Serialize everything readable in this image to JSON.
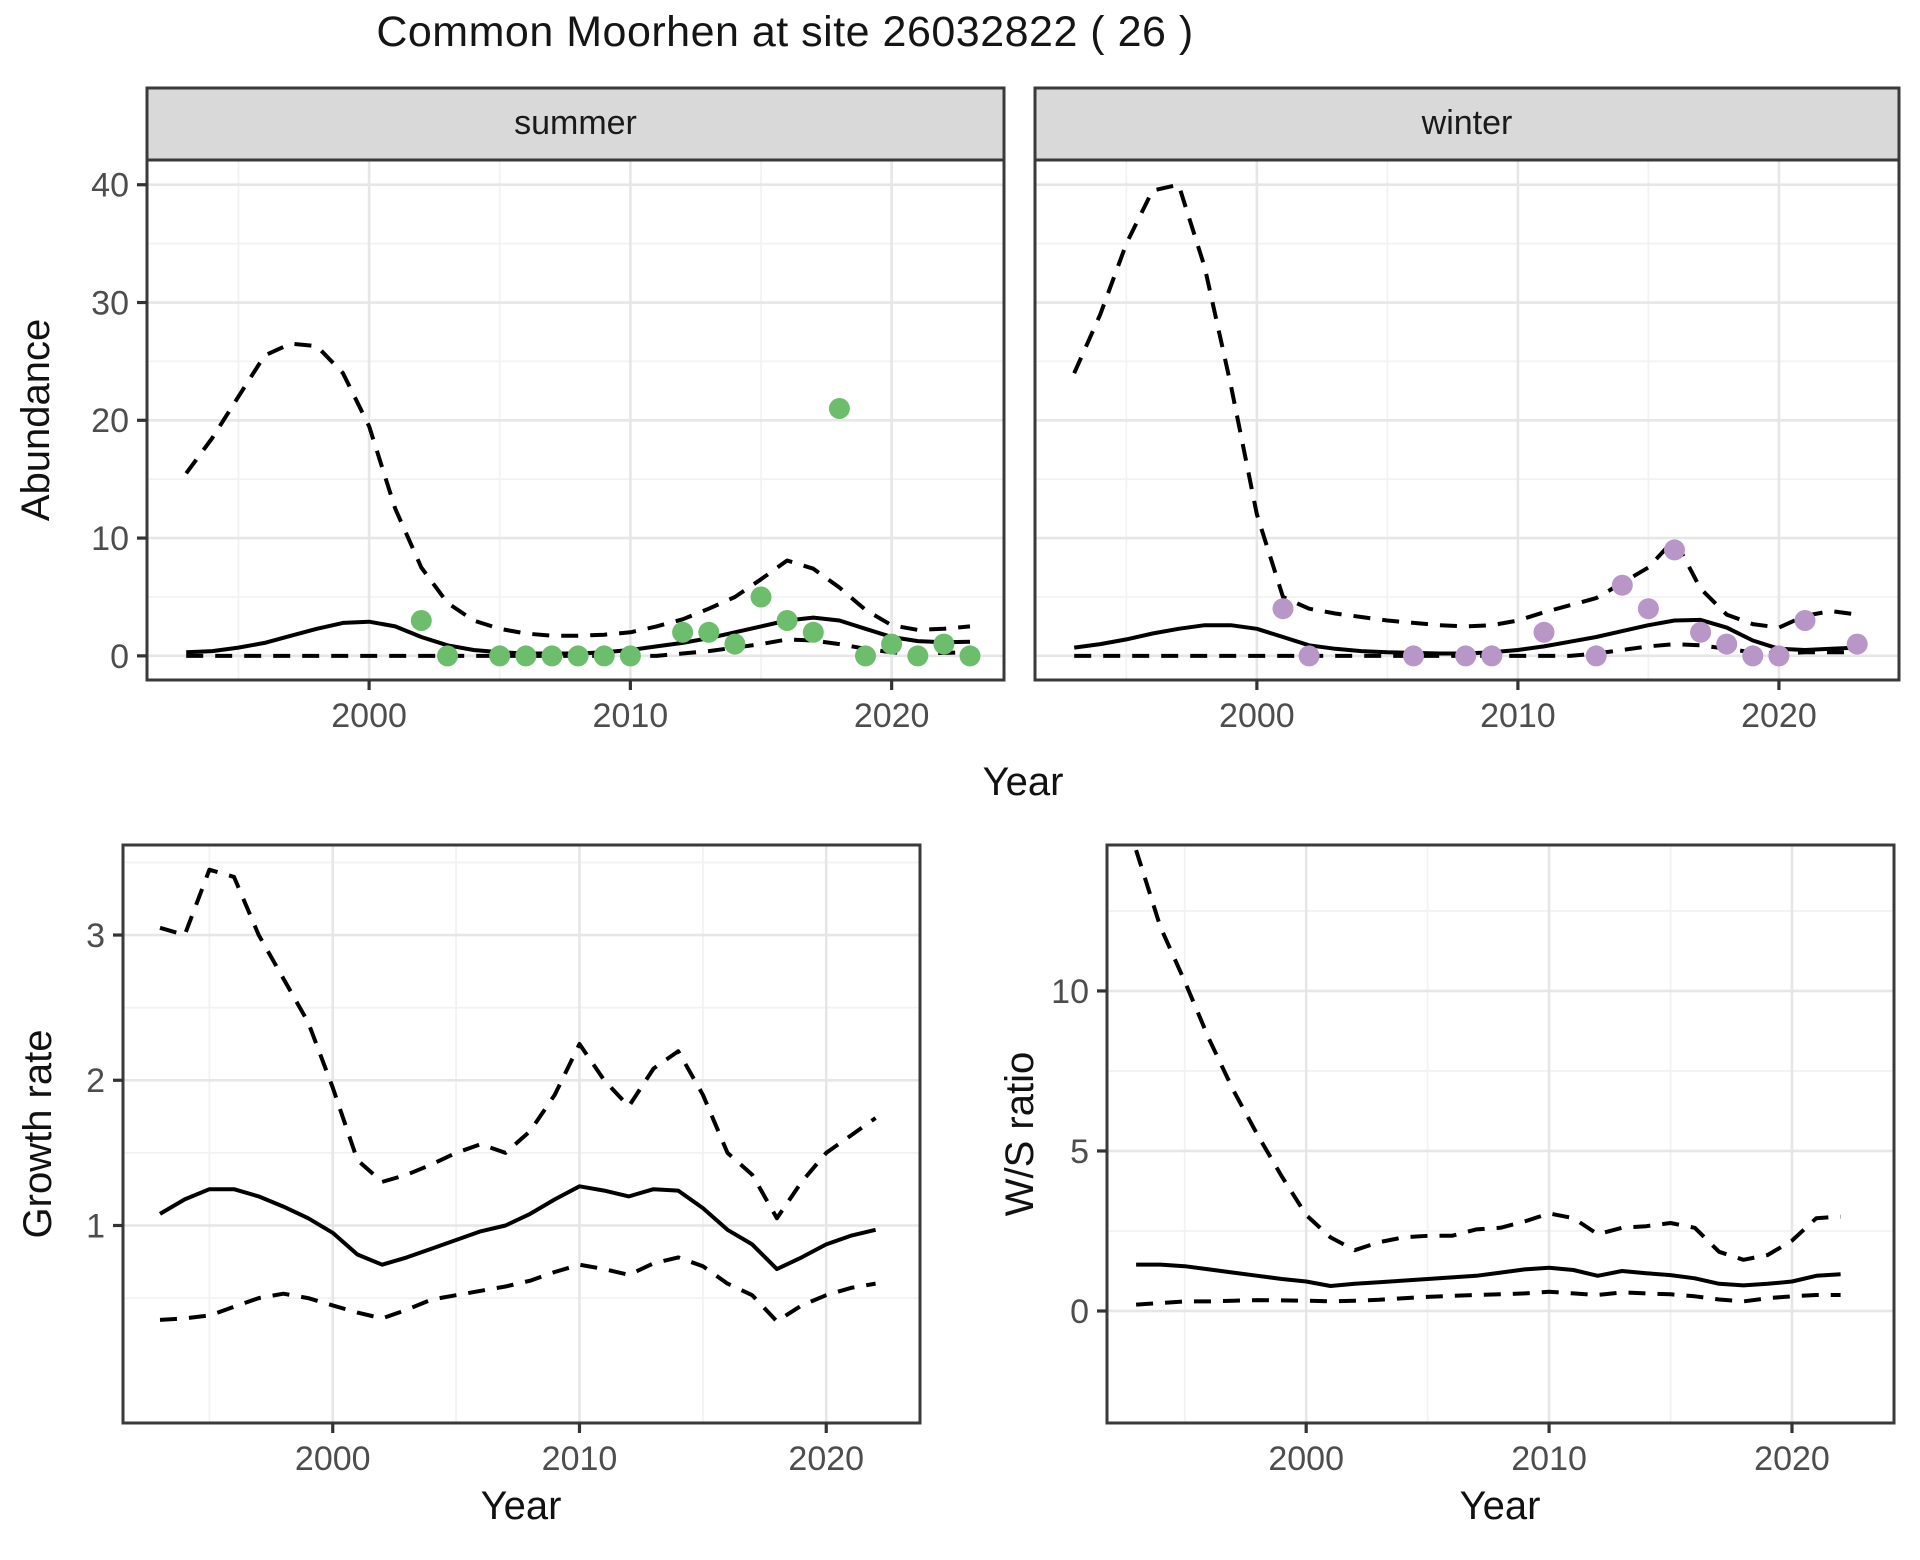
{
  "title": "Common Moorhen at site 26032822 ( 26 )",
  "shared": {
    "top_xlabel": "Year",
    "top_ylabel": "Abundance"
  },
  "colors": {
    "summer_points": "#6cbe6c",
    "winter_points": "#b896c8",
    "line": "#000000",
    "strip_bg": "#d9d9d9",
    "panel_bg": "#ffffff",
    "grid_major": "#e6e6e6",
    "grid_minor": "#f2f2f2",
    "axis_text": "#4d4d4d",
    "border": "#3a3a3a"
  },
  "chart_data": [
    {
      "id": "summer",
      "type": "line",
      "facet": "summer",
      "xlabel": "Year",
      "ylabel": "Abundance",
      "x_range": [
        1991.5,
        2024.3
      ],
      "y_range": [
        -2.05,
        42.1
      ],
      "x_ticks": [
        2000,
        2010,
        2020
      ],
      "x_minor": [
        1995,
        2005,
        2015
      ],
      "y_ticks": [
        0,
        10,
        20,
        30,
        40
      ],
      "y_minor": [
        5,
        15,
        25,
        35
      ],
      "grid": "on",
      "legend": "none",
      "x": [
        1993,
        1994,
        1995,
        1996,
        1997,
        1998,
        1999,
        2000,
        2001,
        2002,
        2003,
        2004,
        2005,
        2006,
        2007,
        2008,
        2009,
        2010,
        2011,
        2012,
        2013,
        2014,
        2015,
        2016,
        2017,
        2018,
        2019,
        2020,
        2021,
        2022,
        2023
      ],
      "series": [
        {
          "name": "upper-95ci",
          "style": "dashed",
          "values": [
            15.5,
            18.5,
            22,
            25.5,
            26.5,
            26.3,
            24,
            19.5,
            12.5,
            7.5,
            4.5,
            3.0,
            2.3,
            1.9,
            1.7,
            1.7,
            1.8,
            2.0,
            2.5,
            3.1,
            4.0,
            5.0,
            6.5,
            8.1,
            7.4,
            5.8,
            3.9,
            2.6,
            2.2,
            2.3,
            2.5
          ]
        },
        {
          "name": "fitted",
          "style": "solid",
          "values": [
            0.3,
            0.4,
            0.7,
            1.1,
            1.7,
            2.3,
            2.8,
            2.9,
            2.5,
            1.6,
            0.9,
            0.5,
            0.3,
            0.2,
            0.2,
            0.2,
            0.3,
            0.5,
            0.8,
            1.1,
            1.5,
            2.0,
            2.5,
            3.0,
            3.25,
            3.0,
            2.3,
            1.6,
            1.25,
            1.15,
            1.2
          ]
        },
        {
          "name": "lower-95ci",
          "style": "dashed",
          "values": [
            0,
            0,
            0,
            0,
            0,
            0,
            0,
            0,
            0,
            0,
            0,
            0,
            0,
            0,
            0,
            0,
            0,
            0,
            0,
            0.2,
            0.4,
            0.7,
            1.0,
            1.4,
            1.3,
            1.0,
            0.6,
            0.3,
            0.2,
            0.25,
            0.3
          ]
        }
      ],
      "points": {
        "name": "summer-counts",
        "color": "#6cbe6c",
        "data": [
          [
            2002,
            3
          ],
          [
            2003,
            0
          ],
          [
            2005,
            0
          ],
          [
            2006,
            0
          ],
          [
            2007,
            0
          ],
          [
            2008,
            0
          ],
          [
            2009,
            0
          ],
          [
            2010,
            0
          ],
          [
            2012,
            2
          ],
          [
            2013,
            2
          ],
          [
            2014,
            1
          ],
          [
            2015,
            5
          ],
          [
            2016,
            3
          ],
          [
            2017,
            2
          ],
          [
            2018,
            21
          ],
          [
            2019,
            0
          ],
          [
            2020,
            1
          ],
          [
            2021,
            0
          ],
          [
            2022,
            1
          ],
          [
            2023,
            0
          ]
        ]
      }
    },
    {
      "id": "winter",
      "type": "line",
      "facet": "winter",
      "xlabel": "Year",
      "ylabel": "Abundance",
      "x_range": [
        1991.5,
        2024.6
      ],
      "y_range": [
        -2.05,
        42.1
      ],
      "x_ticks": [
        2000,
        2010,
        2020
      ],
      "x_minor": [
        1995,
        2005,
        2015
      ],
      "y_ticks": [
        0,
        10,
        20,
        30,
        40
      ],
      "y_minor": [
        5,
        15,
        25,
        35
      ],
      "grid": "on",
      "legend": "none",
      "x": [
        1993,
        1994,
        1995,
        1996,
        1997,
        1998,
        1999,
        2000,
        2001,
        2002,
        2003,
        2004,
        2005,
        2006,
        2007,
        2008,
        2009,
        2010,
        2011,
        2012,
        2013,
        2014,
        2015,
        2016,
        2017,
        2018,
        2019,
        2020,
        2021,
        2022,
        2023
      ],
      "series": [
        {
          "name": "upper-95ci",
          "style": "dashed",
          "values": [
            24,
            29,
            35,
            39.5,
            40,
            33,
            23,
            12,
            5.0,
            4.0,
            3.6,
            3.3,
            3.0,
            2.8,
            2.6,
            2.5,
            2.6,
            3.0,
            3.7,
            4.3,
            4.9,
            6.2,
            7.5,
            9.9,
            5.7,
            3.5,
            2.7,
            2.4,
            3.4,
            3.8,
            3.5
          ]
        },
        {
          "name": "fitted",
          "style": "solid",
          "values": [
            0.7,
            1.0,
            1.4,
            1.9,
            2.3,
            2.6,
            2.6,
            2.3,
            1.6,
            0.9,
            0.6,
            0.4,
            0.3,
            0.25,
            0.2,
            0.2,
            0.3,
            0.5,
            0.8,
            1.2,
            1.6,
            2.1,
            2.6,
            3.0,
            3.05,
            2.4,
            1.3,
            0.6,
            0.5,
            0.6,
            0.7
          ]
        },
        {
          "name": "lower-95ci",
          "style": "dashed",
          "values": [
            0,
            0,
            0,
            0,
            0,
            0,
            0,
            0,
            0,
            0,
            0,
            0,
            0,
            0,
            0,
            0,
            0,
            0,
            0,
            0,
            0.2,
            0.5,
            0.8,
            1.0,
            0.9,
            0.6,
            0.3,
            0.2,
            0.3,
            0.3,
            0.3
          ]
        }
      ],
      "points": {
        "name": "winter-counts",
        "color": "#b896c8",
        "data": [
          [
            2001,
            4
          ],
          [
            2002,
            0
          ],
          [
            2006,
            0
          ],
          [
            2008,
            0
          ],
          [
            2009,
            0
          ],
          [
            2011,
            2
          ],
          [
            2013,
            0
          ],
          [
            2014,
            6
          ],
          [
            2015,
            4
          ],
          [
            2016,
            9
          ],
          [
            2017,
            2
          ],
          [
            2018,
            1
          ],
          [
            2019,
            0
          ],
          [
            2020,
            0
          ],
          [
            2021,
            3
          ],
          [
            2023,
            1
          ]
        ]
      }
    },
    {
      "id": "growth",
      "type": "line",
      "facet": null,
      "xlabel": "Year",
      "ylabel": "Growth rate",
      "x_range": [
        1991.5,
        2023.8
      ],
      "y_range": [
        -0.36,
        3.62
      ],
      "x_ticks": [
        2000,
        2010,
        2020
      ],
      "x_minor": [
        1995,
        2005,
        2015
      ],
      "y_ticks": [
        1,
        2,
        3
      ],
      "y_minor": [
        0.5,
        1.5,
        2.5,
        3.5
      ],
      "grid": "on",
      "legend": "none",
      "x": [
        1993,
        1994,
        1995,
        1996,
        1997,
        1998,
        1999,
        2000,
        2001,
        2002,
        2003,
        2004,
        2005,
        2006,
        2007,
        2008,
        2009,
        2010,
        2011,
        2012,
        2013,
        2014,
        2015,
        2016,
        2017,
        2018,
        2019,
        2020,
        2021,
        2022
      ],
      "series": [
        {
          "name": "upper-95ci",
          "style": "dashed",
          "values": [
            3.05,
            3.0,
            3.45,
            3.4,
            3.0,
            2.7,
            2.4,
            1.95,
            1.45,
            1.3,
            1.35,
            1.42,
            1.5,
            1.56,
            1.5,
            1.65,
            1.9,
            2.25,
            2.0,
            1.82,
            2.08,
            2.2,
            1.9,
            1.5,
            1.35,
            1.05,
            1.3,
            1.5,
            1.62,
            1.74
          ]
        },
        {
          "name": "fitted",
          "style": "solid",
          "values": [
            1.08,
            1.18,
            1.25,
            1.25,
            1.2,
            1.13,
            1.05,
            0.95,
            0.8,
            0.73,
            0.78,
            0.84,
            0.9,
            0.96,
            1.0,
            1.08,
            1.18,
            1.27,
            1.24,
            1.2,
            1.25,
            1.24,
            1.12,
            0.97,
            0.87,
            0.7,
            0.78,
            0.87,
            0.93,
            0.97
          ]
        },
        {
          "name": "lower-95ci",
          "style": "dashed",
          "values": [
            0.35,
            0.36,
            0.38,
            0.44,
            0.5,
            0.53,
            0.5,
            0.45,
            0.4,
            0.36,
            0.42,
            0.49,
            0.52,
            0.55,
            0.58,
            0.62,
            0.68,
            0.73,
            0.7,
            0.66,
            0.74,
            0.78,
            0.72,
            0.6,
            0.52,
            0.34,
            0.45,
            0.52,
            0.57,
            0.6
          ]
        }
      ],
      "points": null
    },
    {
      "id": "ws",
      "type": "line",
      "facet": null,
      "xlabel": "Year",
      "ylabel": "W/S ratio",
      "x_range": [
        1991.8,
        2024.2
      ],
      "y_range": [
        -3.5,
        14.56
      ],
      "x_ticks": [
        2000,
        2010,
        2020
      ],
      "x_minor": [
        1995,
        2005,
        2015
      ],
      "y_ticks": [
        0,
        5,
        10
      ],
      "y_minor": [
        2.5,
        7.5,
        12.5
      ],
      "grid": "on",
      "legend": "none",
      "x": [
        1993,
        1994,
        1995,
        1996,
        1997,
        1998,
        1999,
        2000,
        2001,
        2002,
        2003,
        2004,
        2005,
        2006,
        2007,
        2008,
        2009,
        2010,
        2011,
        2012,
        2013,
        2014,
        2015,
        2016,
        2017,
        2018,
        2019,
        2020,
        2021,
        2022
      ],
      "series": [
        {
          "name": "upper-95ci",
          "style": "dashed",
          "values": [
            14.4,
            12.0,
            10.3,
            8.5,
            6.9,
            5.5,
            4.2,
            3.0,
            2.3,
            1.9,
            2.15,
            2.3,
            2.35,
            2.35,
            2.55,
            2.6,
            2.8,
            3.05,
            2.9,
            2.4,
            2.6,
            2.65,
            2.75,
            2.6,
            1.85,
            1.6,
            1.75,
            2.2,
            2.9,
            2.95
          ]
        },
        {
          "name": "fitted",
          "style": "solid",
          "values": [
            1.45,
            1.45,
            1.4,
            1.3,
            1.2,
            1.1,
            1.0,
            0.92,
            0.78,
            0.85,
            0.9,
            0.95,
            1.0,
            1.05,
            1.1,
            1.2,
            1.3,
            1.35,
            1.28,
            1.1,
            1.25,
            1.18,
            1.12,
            1.02,
            0.85,
            0.8,
            0.85,
            0.92,
            1.1,
            1.15
          ]
        },
        {
          "name": "lower-95ci",
          "style": "dashed",
          "values": [
            0.2,
            0.25,
            0.3,
            0.3,
            0.32,
            0.34,
            0.33,
            0.32,
            0.3,
            0.32,
            0.35,
            0.4,
            0.44,
            0.47,
            0.5,
            0.52,
            0.55,
            0.6,
            0.55,
            0.5,
            0.58,
            0.55,
            0.52,
            0.46,
            0.36,
            0.3,
            0.4,
            0.46,
            0.5,
            0.5
          ]
        }
      ],
      "points": null
    }
  ]
}
